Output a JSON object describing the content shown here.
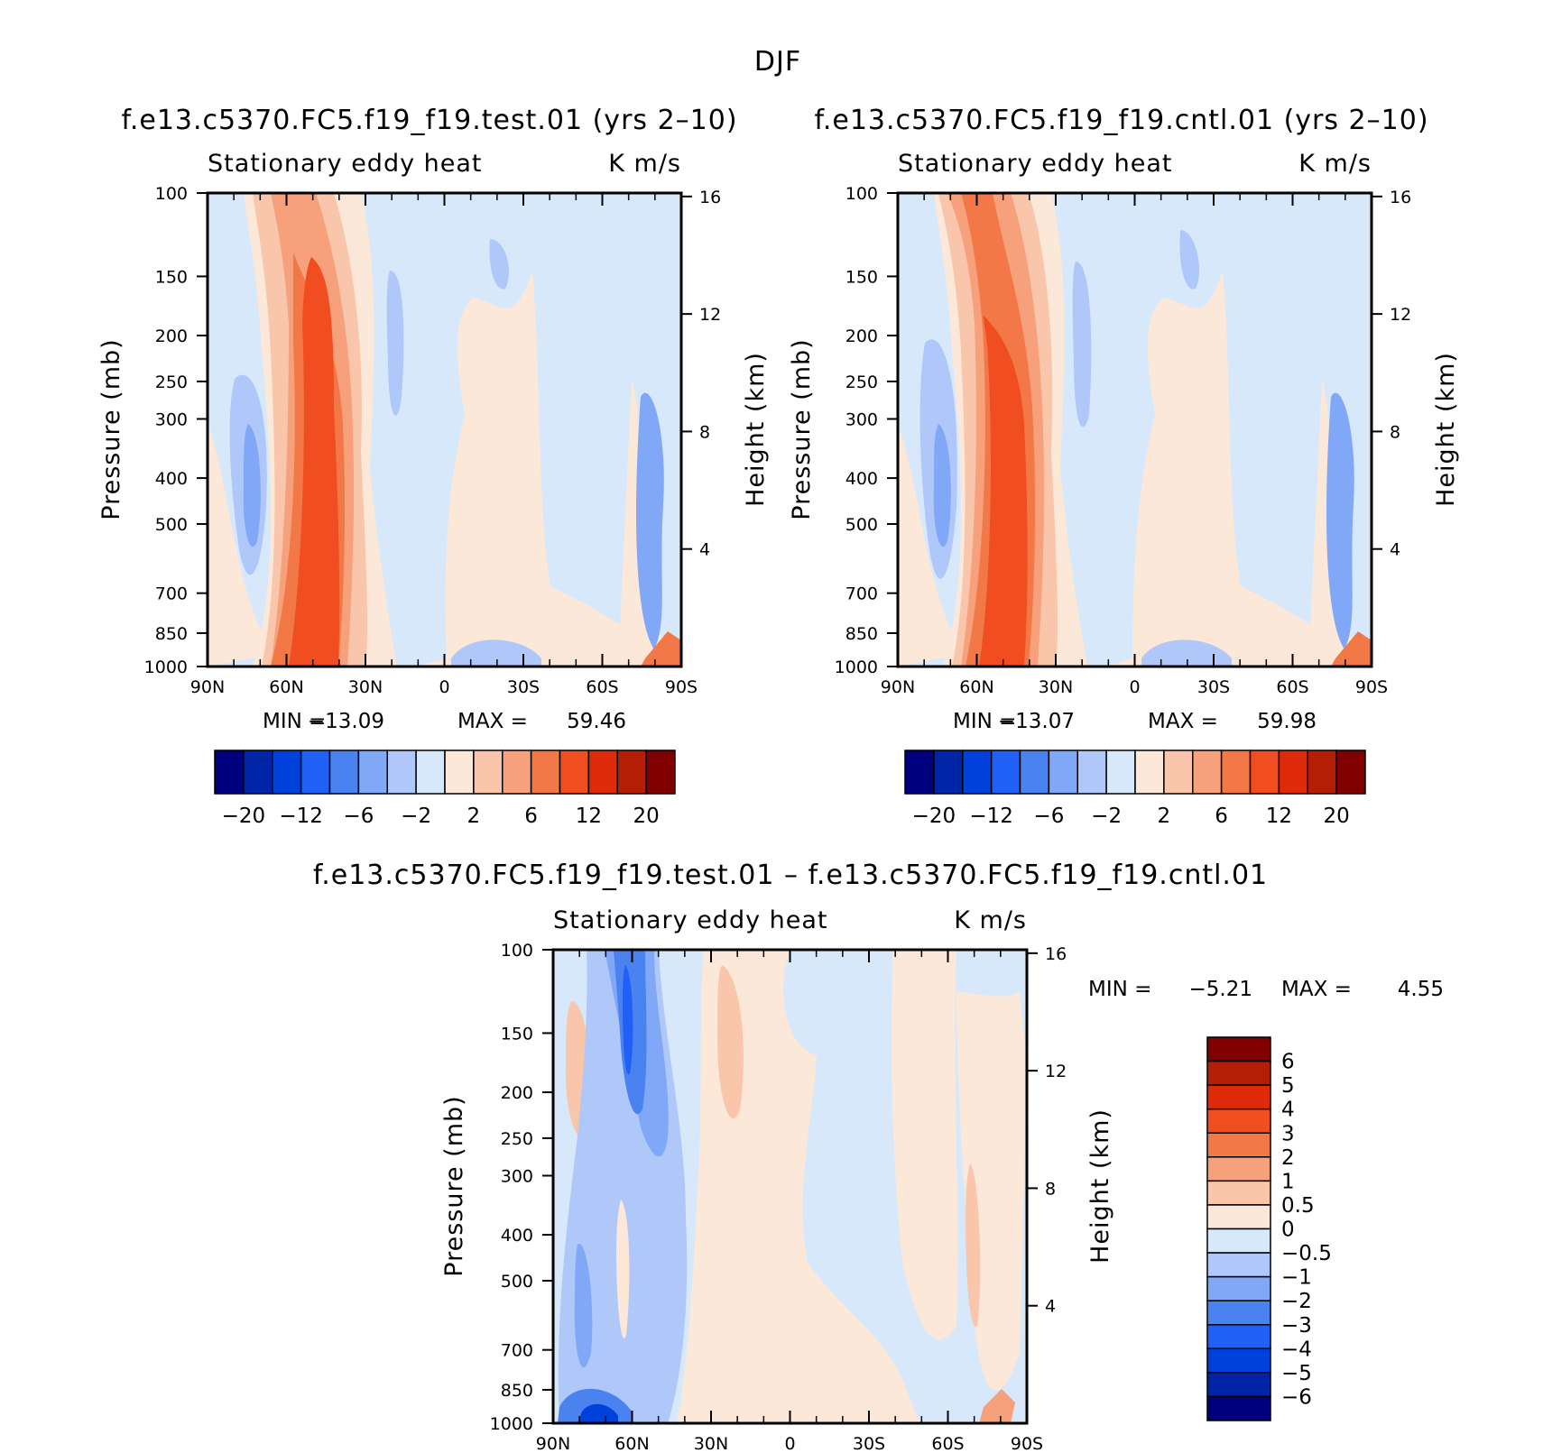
{
  "figure": {
    "title": "DJF",
    "colors": {
      "scale": [
        "#00007f",
        "#0024a6",
        "#0040db",
        "#2060f5",
        "#4a82f0",
        "#80a8f7",
        "#b0c8f9",
        "#d8e8fb",
        "#fbe8d8",
        "#f9c6ac",
        "#f7a07c",
        "#f37848",
        "#f04e20",
        "#de2a08",
        "#b41e04",
        "#800000"
      ]
    }
  },
  "chart_data": [
    {
      "type": "heatmap",
      "case": "f.e13.c5370.FC5.f19_f19.test.01 (yrs 2–10)",
      "title": "Stationary eddy heat",
      "units": "K m/s",
      "xlabel": "",
      "ylabel": "Pressure (mb)",
      "y2label": "Height (km)",
      "x_ticks": [
        "90N",
        "60N",
        "30N",
        "0",
        "30S",
        "60S",
        "90S"
      ],
      "y_ticks": [
        "100",
        "150",
        "200",
        "250",
        "300",
        "400",
        "500",
        "700",
        "850",
        "1000"
      ],
      "y_tick_values": [
        100,
        150,
        200,
        250,
        300,
        400,
        500,
        700,
        850,
        1000
      ],
      "y2_ticks": [
        "16",
        "12",
        "8",
        "4"
      ],
      "xlim": [
        90,
        -90
      ],
      "ylim": [
        1000,
        100
      ],
      "min_label": "MIN =",
      "min": "−13.09",
      "max_label": "MAX =",
      "max": "59.46",
      "colorbar_labels": [
        "−20",
        "−12",
        "−6",
        "−2",
        "2",
        "6",
        "12",
        "20"
      ],
      "levels": [
        -20,
        -16,
        -12,
        -9,
        -6,
        -4,
        -2,
        0,
        2,
        4,
        6,
        9,
        12,
        16,
        20
      ]
    },
    {
      "type": "heatmap",
      "case": "f.e13.c5370.FC5.f19_f19.cntl.01 (yrs 2–10)",
      "title": "Stationary eddy heat",
      "units": "K m/s",
      "xlabel": "",
      "ylabel": "Pressure (mb)",
      "y2label": "Height (km)",
      "x_ticks": [
        "90N",
        "60N",
        "30N",
        "0",
        "30S",
        "60S",
        "90S"
      ],
      "y_ticks": [
        "100",
        "150",
        "200",
        "250",
        "300",
        "400",
        "500",
        "700",
        "850",
        "1000"
      ],
      "y_tick_values": [
        100,
        150,
        200,
        250,
        300,
        400,
        500,
        700,
        850,
        1000
      ],
      "y2_ticks": [
        "16",
        "12",
        "8",
        "4"
      ],
      "xlim": [
        90,
        -90
      ],
      "ylim": [
        1000,
        100
      ],
      "min_label": "MIN =",
      "min": "−13.07",
      "max_label": "MAX =",
      "max": "59.98",
      "colorbar_labels": [
        "−20",
        "−12",
        "−6",
        "−2",
        "2",
        "6",
        "12",
        "20"
      ],
      "levels": [
        -20,
        -16,
        -12,
        -9,
        -6,
        -4,
        -2,
        0,
        2,
        4,
        6,
        9,
        12,
        16,
        20
      ]
    },
    {
      "type": "heatmap",
      "case": "f.e13.c5370.FC5.f19_f19.test.01 – f.e13.c5370.FC5.f19_f19.cntl.01",
      "title": "Stationary eddy heat",
      "units": "K m/s",
      "xlabel": "",
      "ylabel": "Pressure (mb)",
      "y2label": "Height (km)",
      "x_ticks": [
        "90N",
        "60N",
        "30N",
        "0",
        "30S",
        "60S",
        "90S"
      ],
      "y_ticks": [
        "100",
        "150",
        "200",
        "250",
        "300",
        "400",
        "500",
        "700",
        "850",
        "1000"
      ],
      "y_tick_values": [
        100,
        150,
        200,
        250,
        300,
        400,
        500,
        700,
        850,
        1000
      ],
      "y2_ticks": [
        "16",
        "12",
        "8",
        "4"
      ],
      "xlim": [
        90,
        -90
      ],
      "ylim": [
        1000,
        100
      ],
      "min_label": "MIN =",
      "min": "−5.21",
      "max_label": "MAX =",
      "max": "4.55",
      "colorbar_labels": [
        "6",
        "5",
        "4",
        "3",
        "2",
        "1",
        "0.5",
        "0",
        "−0.5",
        "−1",
        "−2",
        "−3",
        "−4",
        "−5",
        "−6"
      ],
      "levels": [
        -6,
        -5,
        -4,
        -3,
        -2,
        -1,
        -0.5,
        0,
        0.5,
        1,
        2,
        3,
        4,
        5,
        6
      ]
    }
  ]
}
